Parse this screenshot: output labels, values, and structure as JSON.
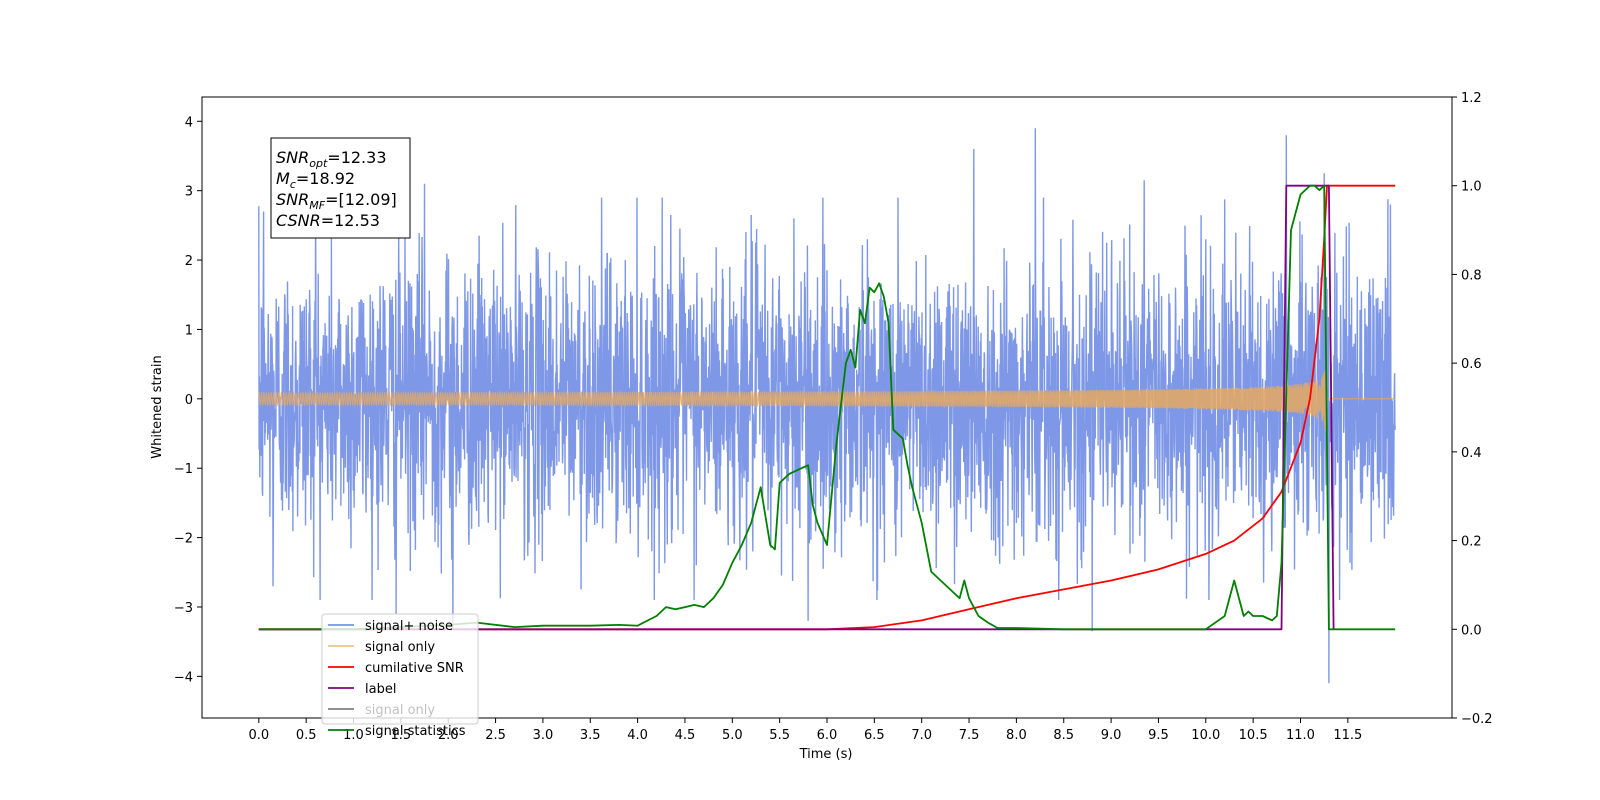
{
  "chart_data": {
    "type": "line",
    "xlabel": "Time (s)",
    "ylabel": "Whitened strain",
    "xlim": [
      -0.6,
      12.6
    ],
    "ylim": [
      -4.6,
      4.35
    ],
    "ylim_right": [
      -0.2,
      1.2
    ],
    "xticks": [
      0.0,
      0.5,
      1.0,
      1.5,
      2.0,
      2.5,
      3.0,
      3.5,
      4.0,
      4.5,
      5.0,
      5.5,
      6.0,
      6.5,
      7.0,
      7.5,
      8.0,
      8.5,
      9.0,
      9.5,
      10.0,
      10.5,
      11.0,
      11.5
    ],
    "xtick_labels": [
      "0.0",
      "0.5",
      "1.0",
      "1.5",
      "2.0",
      "2.5",
      "3.0",
      "3.5",
      "4.0",
      "4.5",
      "5.0",
      "5.5",
      "6.0",
      "6.5",
      "7.0",
      "7.5",
      "8.0",
      "8.5",
      "9.0",
      "9.5",
      "10.0",
      "10.5",
      "11.0",
      "11.5"
    ],
    "yticks_left": [
      -4,
      -3,
      -2,
      -1,
      0,
      1,
      2,
      3,
      4
    ],
    "ytick_labels_left": [
      "−4",
      "−3",
      "−2",
      "−1",
      "0",
      "1",
      "2",
      "3",
      "4"
    ],
    "yticks_right": [
      -0.2,
      0.0,
      0.2,
      0.4,
      0.6,
      0.8,
      1.0,
      1.2
    ],
    "ytick_labels_right": [
      "−0.2",
      "0.0",
      "0.2",
      "0.4",
      "0.6",
      "0.8",
      "1.0",
      "1.2"
    ],
    "grid": false,
    "legend_position": "lower-left",
    "annotation": {
      "lines": [
        {
          "sym": "SNR",
          "sub": "opt",
          "rest": "=12.33"
        },
        {
          "sym": "M",
          "sub": "c",
          "rest": "=18.92"
        },
        {
          "sym": "SNR",
          "sub": "MF",
          "rest": "=[12.09]"
        },
        {
          "sym": "CSNR",
          "sub": "",
          "rest": "=12.53"
        }
      ]
    },
    "series": [
      {
        "name": "signal+ noise",
        "color": "#7792e6",
        "axis": "left",
        "kind": "noise",
        "x_range": [
          0.0,
          12.0
        ],
        "amplitude_sigma": 1.0,
        "peaks": [
          [
            0.05,
            2.7
          ],
          [
            0.6,
            2.9
          ],
          [
            1.75,
            3.1
          ],
          [
            2.05,
            3.2
          ],
          [
            4.35,
            2.65
          ],
          [
            5.2,
            2.65
          ],
          [
            5.65,
            2.6
          ],
          [
            6.75,
            2.9
          ],
          [
            7.55,
            3.6
          ],
          [
            8.2,
            3.9
          ],
          [
            9.35,
            3.15
          ],
          [
            10.85,
            3.8
          ],
          [
            11.25,
            3.25
          ],
          [
            11.95,
            2.8
          ],
          [
            1.45,
            -3.1
          ],
          [
            2.05,
            -3.3
          ],
          [
            5.8,
            -3.2
          ],
          [
            8.8,
            -3.35
          ],
          [
            11.3,
            -4.1
          ],
          [
            0.15,
            -2.7
          ]
        ]
      },
      {
        "name": "signal only",
        "color": "#e6a860",
        "axis": "left",
        "kind": "chirp",
        "x_range": [
          0.0,
          12.0
        ],
        "merger_time": 11.28,
        "peak_amplitude": 2.5
      },
      {
        "name": "cumilative SNR",
        "color": "#ff0000",
        "axis": "right",
        "x": [
          0.0,
          6.0,
          6.5,
          7.0,
          7.5,
          8.0,
          8.5,
          9.0,
          9.5,
          10.0,
          10.3,
          10.6,
          10.8,
          11.0,
          11.1,
          11.2,
          11.25,
          11.28,
          11.3,
          12.0
        ],
        "y": [
          0.0,
          0.0,
          0.005,
          0.02,
          0.045,
          0.07,
          0.09,
          0.11,
          0.135,
          0.17,
          0.2,
          0.25,
          0.31,
          0.42,
          0.52,
          0.7,
          0.88,
          1.0,
          1.0,
          1.0
        ]
      },
      {
        "name": "label",
        "color": "#800080",
        "axis": "right",
        "x": [
          0.0,
          10.8,
          10.85,
          11.3,
          11.35
        ],
        "y": [
          0.0,
          0.0,
          1.0,
          1.0,
          0.0
        ]
      },
      {
        "name": "signal only",
        "color": "#808080",
        "axis": "right",
        "x": [],
        "y": []
      },
      {
        "name": "signal statistics",
        "color": "#008000",
        "axis": "right",
        "x": [
          0.0,
          1.0,
          2.0,
          2.3,
          2.7,
          3.0,
          3.5,
          3.8,
          4.0,
          4.2,
          4.3,
          4.4,
          4.5,
          4.6,
          4.7,
          4.8,
          4.9,
          5.0,
          5.1,
          5.2,
          5.3,
          5.4,
          5.45,
          5.5,
          5.6,
          5.7,
          5.8,
          5.85,
          5.9,
          6.0,
          6.1,
          6.2,
          6.25,
          6.3,
          6.35,
          6.4,
          6.45,
          6.5,
          6.55,
          6.6,
          6.65,
          6.7,
          6.8,
          6.85,
          6.9,
          7.0,
          7.1,
          7.2,
          7.3,
          7.4,
          7.45,
          7.5,
          7.6,
          7.7,
          7.8,
          8.0,
          8.5,
          9.0,
          9.5,
          10.0,
          10.2,
          10.3,
          10.4,
          10.45,
          10.5,
          10.6,
          10.7,
          10.75,
          10.8,
          10.9,
          11.0,
          11.05,
          11.1,
          11.15,
          11.2,
          11.25,
          11.3,
          11.35,
          12.0
        ],
        "y": [
          0.0,
          0.0,
          0.01,
          0.015,
          0.005,
          0.008,
          0.008,
          0.01,
          0.008,
          0.03,
          0.05,
          0.045,
          0.05,
          0.055,
          0.05,
          0.07,
          0.1,
          0.15,
          0.19,
          0.24,
          0.32,
          0.19,
          0.18,
          0.33,
          0.35,
          0.36,
          0.37,
          0.28,
          0.24,
          0.19,
          0.42,
          0.6,
          0.63,
          0.59,
          0.72,
          0.69,
          0.77,
          0.76,
          0.78,
          0.75,
          0.69,
          0.45,
          0.43,
          0.37,
          0.32,
          0.24,
          0.13,
          0.11,
          0.09,
          0.07,
          0.11,
          0.07,
          0.03,
          0.015,
          0.003,
          0.003,
          0.0,
          0.0,
          0.0,
          0.0,
          0.03,
          0.11,
          0.03,
          0.04,
          0.03,
          0.03,
          0.02,
          0.03,
          0.15,
          0.9,
          0.98,
          0.99,
          1.0,
          1.0,
          0.99,
          1.0,
          0.0,
          0.0,
          0.0
        ]
      }
    ]
  }
}
